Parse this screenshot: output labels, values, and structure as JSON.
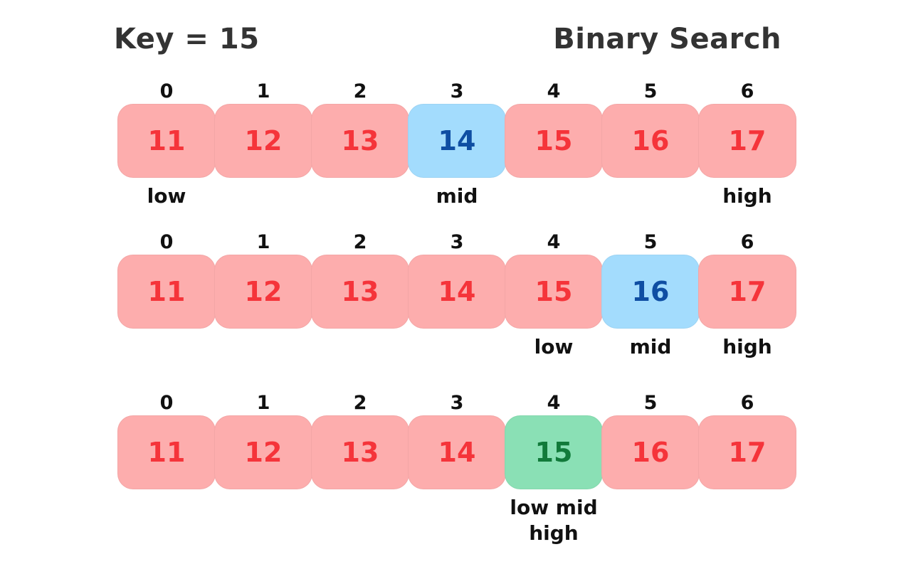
{
  "header": {
    "key_label": "Key = 15",
    "title": "Binary Search"
  },
  "colors": {
    "default_fill": "#fdadad",
    "default_text": "#f5343a",
    "mid_fill": "#a3dcfd",
    "mid_text": "#0f4ea3",
    "found_fill": "#8ae0b5",
    "found_text": "#117a3a"
  },
  "steps": [
    {
      "indices": [
        "0",
        "1",
        "2",
        "3",
        "4",
        "5",
        "6"
      ],
      "values": [
        "11",
        "12",
        "13",
        "14",
        "15",
        "16",
        "17"
      ],
      "states": [
        "default",
        "default",
        "default",
        "mid",
        "default",
        "default",
        "default"
      ],
      "labels": [
        "low",
        "",
        "",
        "mid",
        "",
        "",
        "high"
      ]
    },
    {
      "indices": [
        "0",
        "1",
        "2",
        "3",
        "4",
        "5",
        "6"
      ],
      "values": [
        "11",
        "12",
        "13",
        "14",
        "15",
        "16",
        "17"
      ],
      "states": [
        "default",
        "default",
        "default",
        "default",
        "default",
        "mid",
        "default"
      ],
      "labels": [
        "",
        "",
        "",
        "",
        "low",
        "mid",
        "high"
      ]
    },
    {
      "indices": [
        "0",
        "1",
        "2",
        "3",
        "4",
        "5",
        "6"
      ],
      "values": [
        "11",
        "12",
        "13",
        "14",
        "15",
        "16",
        "17"
      ],
      "states": [
        "default",
        "default",
        "default",
        "default",
        "found",
        "default",
        "default"
      ],
      "labels": [
        "",
        "",
        "",
        "",
        "low  mid\nhigh",
        "",
        ""
      ]
    }
  ]
}
